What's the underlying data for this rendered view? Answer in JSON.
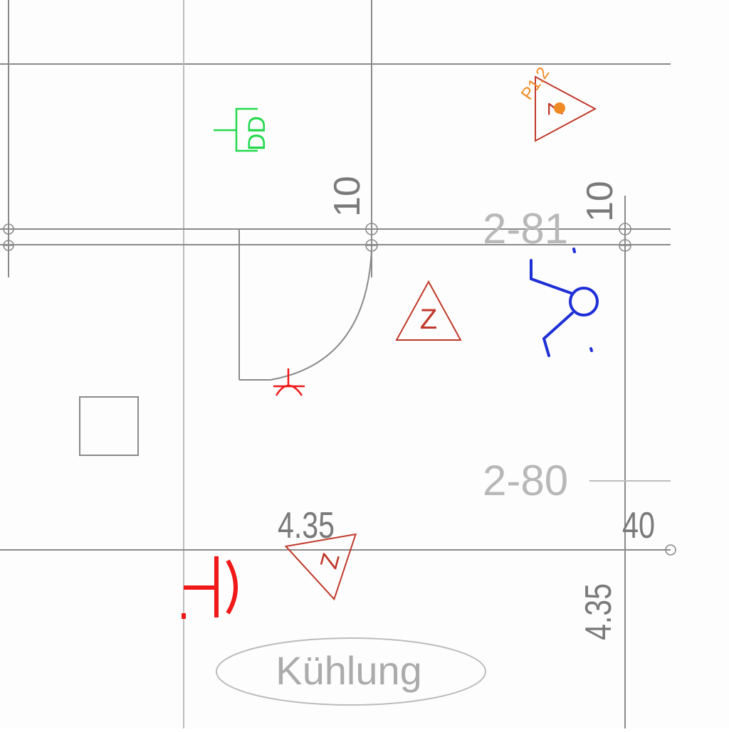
{
  "drawing": {
    "rooms": [
      {
        "id": "room-2-81",
        "number": "2-81"
      },
      {
        "id": "room-2-80",
        "number": "2-80"
      }
    ],
    "dimensions": {
      "dim_10_left": "10",
      "dim_10_right": "10",
      "dim_435_horizontal": "4.35",
      "dim_435_vertical": "4.35",
      "dim_40": "40"
    },
    "symbols": {
      "z_top": "Z",
      "z_middle": "Z",
      "z_bottom": "Z",
      "tag_p12": "P1.2",
      "dd_label": "DD"
    },
    "oval_label": "Kühlung"
  },
  "colors": {
    "grid": "#8a8a8a",
    "green_symbol": "#22d84a",
    "z_triangle": "#c0392b",
    "tag_orange": "#f08a24",
    "blue_symbol": "#1f2fd6",
    "red_outlet": "#f01818"
  }
}
